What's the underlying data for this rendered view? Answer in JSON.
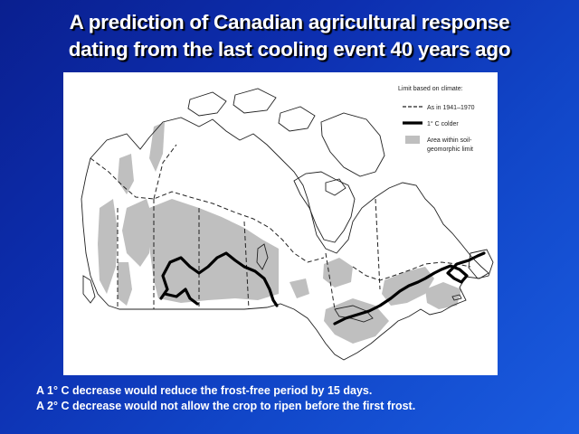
{
  "slide": {
    "title_line1": "A prediction of Canadian agricultural response",
    "title_line2": "dating from the last cooling event 40 years ago"
  },
  "map": {
    "legend": {
      "heading": "Limit based on climate:",
      "items": [
        {
          "symbol": "dashed-line",
          "label": "As in 1941–1970"
        },
        {
          "symbol": "thick-line",
          "label": "1° C colder"
        },
        {
          "symbol": "gray-box",
          "label_line1": "Area within soil-",
          "label_line2": "geomorphic limit"
        }
      ]
    },
    "colors": {
      "land_outline": "#222222",
      "soil_area": "#bfbfbf",
      "colder_limit": "#000000",
      "background": "#ffffff"
    }
  },
  "caption": {
    "line1": "A 1° C decrease would reduce the frost-free period by 15 days.",
    "line2": "A 2° C decrease would not allow the crop to ripen before the first frost."
  }
}
